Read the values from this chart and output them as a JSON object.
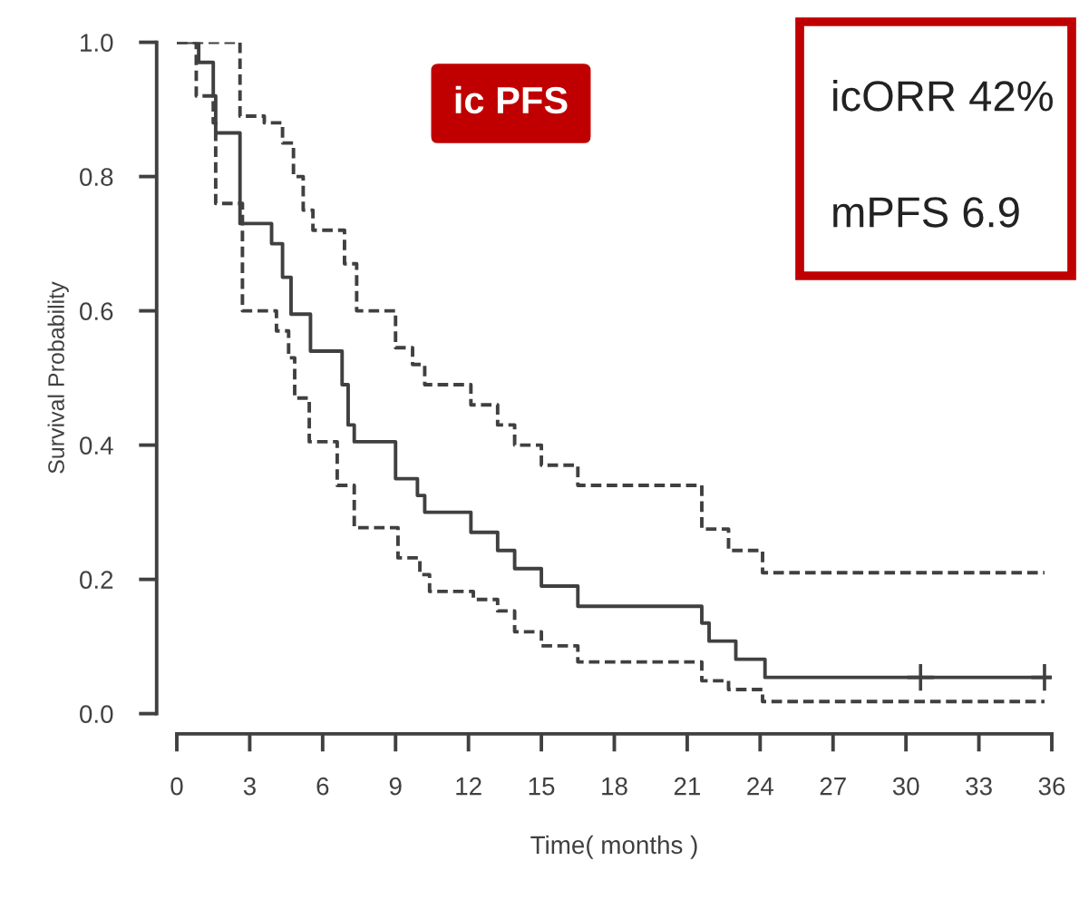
{
  "chart_data": {
    "type": "step",
    "xlabel": "Time( months )",
    "ylabel": "Survival Probability",
    "xlim": [
      0,
      36
    ],
    "ylim": [
      0,
      1
    ],
    "xticks": [
      0,
      3,
      6,
      9,
      12,
      15,
      18,
      21,
      24,
      27,
      30,
      33,
      36
    ],
    "yticks": [
      {
        "value": 0,
        "label": "0.0"
      },
      0.2,
      0.4,
      0.6,
      0.8,
      {
        "value": 1,
        "label": "1.0"
      }
    ],
    "grid": false,
    "legend": false,
    "annotations": [
      "ic PFS",
      "icORR 42%",
      "mPFS 6.9"
    ],
    "series": [
      {
        "color": "#404040",
        "line_style": "solid",
        "x": [
          0,
          0.9,
          1.5,
          1.6,
          2.6,
          3.9,
          4.35,
          4.7,
          5.0,
          5.5,
          6.8,
          7.05,
          7.3,
          9.0,
          9.9,
          10.2,
          12.1,
          13.2,
          13.9,
          15.0,
          16.5,
          21.6,
          21.9,
          23.0,
          24.2,
          36
        ],
        "values": [
          1.0,
          0.97,
          0.92,
          0.865,
          0.73,
          0.7,
          0.65,
          0.595,
          0.595,
          0.54,
          0.49,
          0.43,
          0.405,
          0.35,
          0.325,
          0.3,
          0.27,
          0.243,
          0.216,
          0.19,
          0.16,
          0.135,
          0.108,
          0.081,
          0.054,
          0.054
        ]
      },
      {
        "color": "#404040",
        "line_style": "dashed",
        "x": [
          0,
          2.6,
          3.6,
          4.35,
          4.8,
          5.2,
          5.6,
          6.9,
          7.4,
          9.0,
          9.7,
          10.2,
          12.1,
          13.2,
          13.9,
          15.0,
          16.5,
          21.6,
          22.7,
          24.1,
          35.7
        ],
        "values": [
          1.0,
          0.89,
          0.88,
          0.85,
          0.8,
          0.75,
          0.72,
          0.67,
          0.6,
          0.545,
          0.52,
          0.49,
          0.46,
          0.43,
          0.4,
          0.37,
          0.34,
          0.275,
          0.243,
          0.21,
          0.21
        ]
      },
      {
        "color": "#404040",
        "line_style": "dashed",
        "x": [
          0,
          0.8,
          1.5,
          1.6,
          2.7,
          4.1,
          4.6,
          4.85,
          5.45,
          6.6,
          7.3,
          9.1,
          10.0,
          10.4,
          12.2,
          13.2,
          13.9,
          15.0,
          16.5,
          21.6,
          22.7,
          24.1,
          35.7
        ],
        "values": [
          1.0,
          0.92,
          0.88,
          0.76,
          0.6,
          0.57,
          0.53,
          0.47,
          0.405,
          0.34,
          0.277,
          0.232,
          0.207,
          0.182,
          0.17,
          0.153,
          0.122,
          0.101,
          0.077,
          0.049,
          0.036,
          0.018,
          0.018
        ]
      },
      {
        "type": "scatter",
        "color": "#404040",
        "marker": "cross",
        "x": [
          30.6,
          35.7
        ],
        "values": [
          0.054,
          0.054
        ]
      }
    ]
  }
}
